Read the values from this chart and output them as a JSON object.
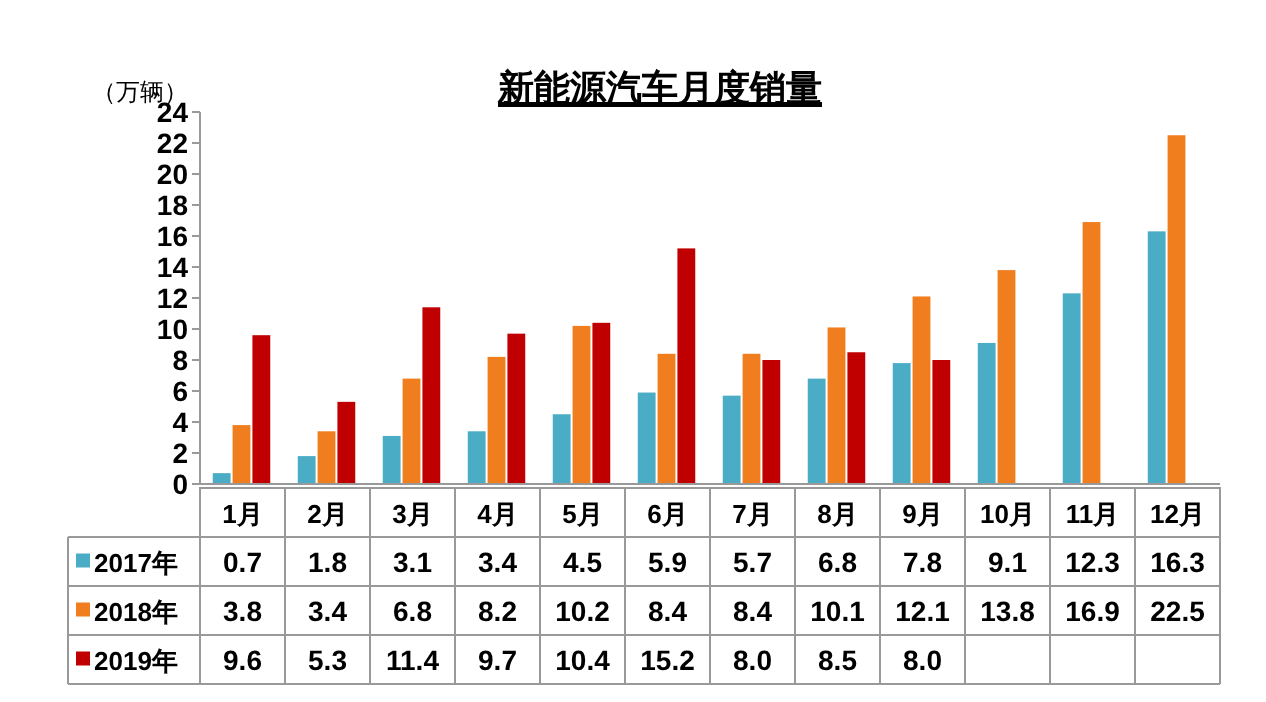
{
  "chart_data": {
    "type": "bar",
    "title": "新能源汽车月度销量",
    "ylabel": "（万辆）",
    "categories": [
      "1月",
      "2月",
      "3月",
      "4月",
      "5月",
      "6月",
      "7月",
      "8月",
      "9月",
      "10月",
      "11月",
      "12月"
    ],
    "series": [
      {
        "name": "2017年",
        "color": "#4bacc6",
        "values": [
          0.7,
          1.8,
          3.1,
          3.4,
          4.5,
          5.9,
          5.7,
          6.8,
          7.8,
          9.1,
          12.3,
          16.3
        ],
        "value_labels": [
          "0.7",
          "1.8",
          "3.1",
          "3.4",
          "4.5",
          "5.9",
          "5.7",
          "6.8",
          "7.8",
          "9.1",
          "12.3",
          "16.3"
        ]
      },
      {
        "name": "2018年",
        "color": "#f07e1e",
        "values": [
          3.8,
          3.4,
          6.8,
          8.2,
          10.2,
          8.4,
          8.4,
          10.1,
          12.1,
          13.8,
          16.9,
          22.5
        ],
        "value_labels": [
          "3.8",
          "3.4",
          "6.8",
          "8.2",
          "10.2",
          "8.4",
          "8.4",
          "10.1",
          "12.1",
          "13.8",
          "16.9",
          "22.5"
        ]
      },
      {
        "name": "2019年",
        "color": "#c00000",
        "values": [
          9.6,
          5.3,
          11.4,
          9.7,
          10.4,
          15.2,
          8.0,
          8.5,
          8.0,
          null,
          null,
          null
        ],
        "value_labels": [
          "9.6",
          "5.3",
          "11.4",
          "9.7",
          "10.4",
          "15.2",
          "8.0",
          "8.5",
          "8.0",
          null,
          null,
          null
        ]
      }
    ],
    "ylim": [
      0,
      24
    ],
    "yticks": [
      0,
      2,
      4,
      6,
      8,
      10,
      12,
      14,
      16,
      18,
      20,
      22,
      24
    ],
    "legend": "bottom",
    "grid": false
  }
}
